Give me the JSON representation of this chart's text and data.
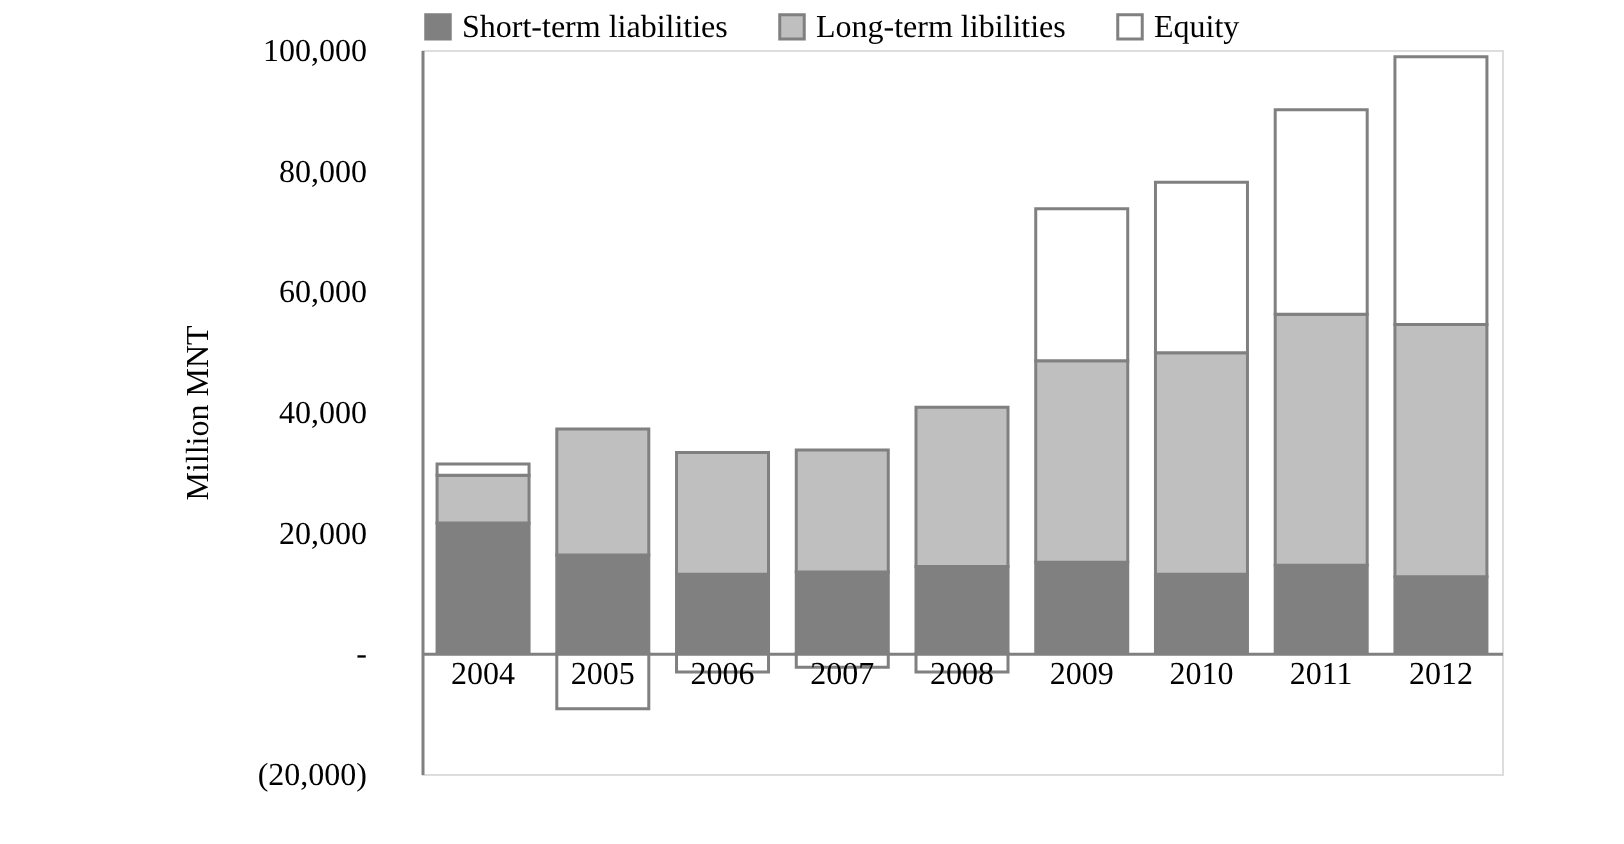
{
  "chart_data": {
    "type": "bar",
    "stacked": true,
    "ylabel": "Million MNT",
    "legend": "top",
    "grid": false,
    "categories": [
      "2004",
      "2005",
      "2006",
      "2007",
      "2008",
      "2009",
      "2010",
      "2011",
      "2012"
    ],
    "series": [
      {
        "name": "Short-term liabilities",
        "color": "#808080",
        "values": [
          21600,
          16300,
          13100,
          13500,
          14400,
          15100,
          13100,
          14600,
          12700
        ]
      },
      {
        "name": "Long-term libilities",
        "color": "#bfbfbf",
        "values": [
          7900,
          20900,
          20200,
          20200,
          26400,
          33400,
          36700,
          41600,
          41800
        ]
      },
      {
        "name": "Equity",
        "color": "#ffffff",
        "values": [
          1900,
          -9200,
          -3100,
          -2300,
          -3100,
          25200,
          28300,
          33900,
          44400
        ]
      }
    ],
    "ylim": [
      -20000,
      100000
    ],
    "yticks": [
      {
        "value": -20000,
        "label": "(20,000)"
      },
      {
        "value": 0,
        "label": "-"
      },
      {
        "value": 20000,
        "label": "20,000"
      },
      {
        "value": 40000,
        "label": "40,000"
      },
      {
        "value": 60000,
        "label": "60,000"
      },
      {
        "value": 80000,
        "label": "80,000"
      },
      {
        "value": 100000,
        "label": "100,000"
      }
    ]
  }
}
